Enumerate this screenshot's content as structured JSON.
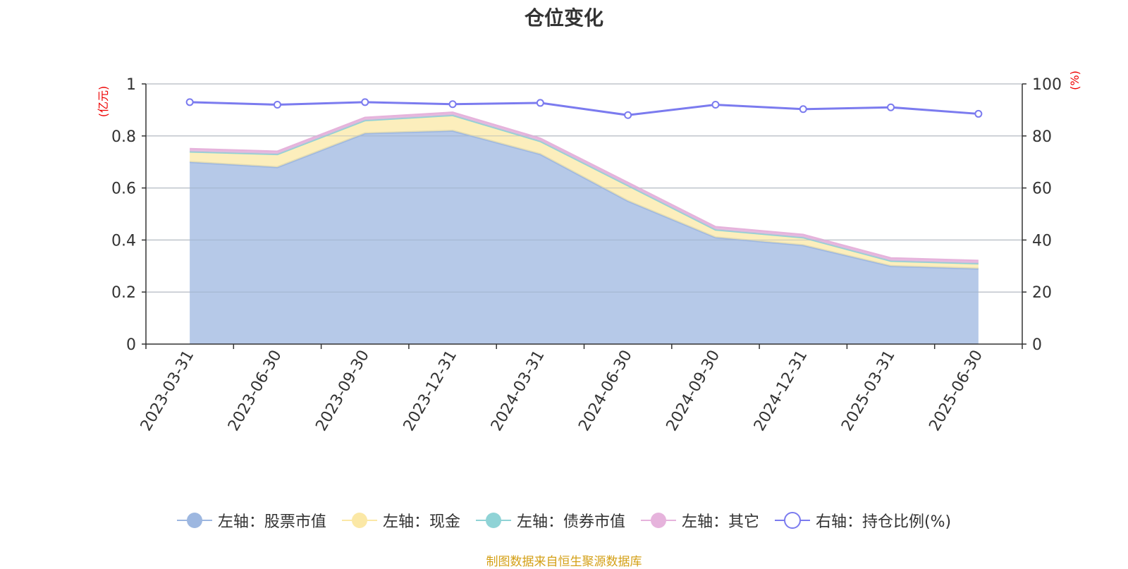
{
  "title": "仓位变化",
  "source_text": "制图数据来自恒生聚源数据库",
  "chart_data": {
    "type": "area",
    "categories": [
      "2023-03-31",
      "2023-06-30",
      "2023-09-30",
      "2023-12-31",
      "2024-03-31",
      "2024-06-30",
      "2024-09-30",
      "2024-12-31",
      "2025-03-31",
      "2025-06-30"
    ],
    "left_axis": {
      "unit": "(亿元)",
      "ylim": [
        0,
        1
      ],
      "ticks": [
        "0",
        "0.2",
        "0.4",
        "0.6",
        "0.8",
        "1"
      ]
    },
    "right_axis": {
      "unit": "(%)",
      "ylim": [
        0,
        100
      ],
      "ticks": [
        "0",
        "20",
        "40",
        "60",
        "80",
        "100"
      ]
    },
    "grid": true,
    "legend_position": "bottom",
    "series": [
      {
        "name": "左轴：股票市值",
        "axis": "left",
        "stacked": true,
        "color": "#9db7e0",
        "values": [
          0.7,
          0.68,
          0.81,
          0.82,
          0.73,
          0.55,
          0.41,
          0.38,
          0.3,
          0.29
        ]
      },
      {
        "name": "左轴：现金",
        "axis": "left",
        "stacked": true,
        "color": "#fbe8a6",
        "values": [
          0.04,
          0.05,
          0.05,
          0.06,
          0.05,
          0.06,
          0.03,
          0.03,
          0.02,
          0.02
        ]
      },
      {
        "name": "左轴：债券市值",
        "axis": "left",
        "stacked": true,
        "color": "#8fd3d6",
        "values": [
          0,
          0,
          0,
          0,
          0,
          0,
          0,
          0,
          0,
          0
        ]
      },
      {
        "name": "左轴：其它",
        "axis": "left",
        "stacked": true,
        "color": "#e6b3dc",
        "values": [
          0.01,
          0.01,
          0.01,
          0.01,
          0.01,
          0.01,
          0.01,
          0.01,
          0.01,
          0.01
        ]
      },
      {
        "name": "右轴：持仓比例(%)",
        "axis": "right",
        "stacked": false,
        "color": "#7b7bef",
        "values": [
          93.0,
          92.0,
          93.0,
          92.2,
          92.7,
          88.0,
          92.0,
          90.3,
          91.0,
          88.5
        ]
      }
    ]
  }
}
